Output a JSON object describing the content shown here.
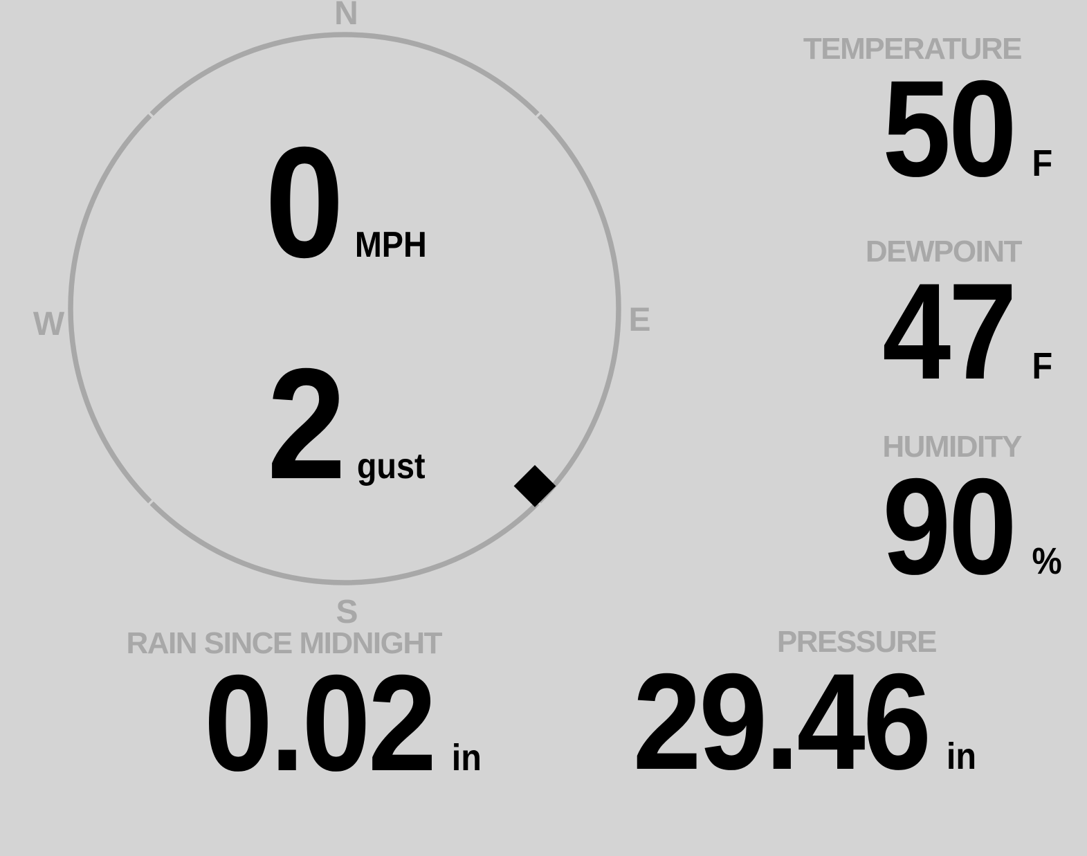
{
  "colors": {
    "background": "#d4d4d4",
    "muted": "#a8a8a8",
    "ink": "#000000"
  },
  "wind": {
    "speed": {
      "value": "0",
      "unit": "MPH"
    },
    "gust": {
      "value": "2",
      "unit": "gust"
    },
    "compass": {
      "north": "N",
      "east": "E",
      "south": "S",
      "west": "W"
    },
    "direction_degrees": 133
  },
  "metrics": {
    "temperature": {
      "label": "TEMPERATURE",
      "value": "50",
      "unit": "F"
    },
    "dewpoint": {
      "label": "DEWPOINT",
      "value": "47",
      "unit": "F"
    },
    "humidity": {
      "label": "HUMIDITY",
      "value": "90",
      "unit": "%"
    },
    "rain": {
      "label": "RAIN SINCE MIDNIGHT",
      "value": "0.02",
      "unit": "in"
    },
    "pressure": {
      "label": "PRESSURE",
      "value": "29.46",
      "unit": "in"
    }
  }
}
